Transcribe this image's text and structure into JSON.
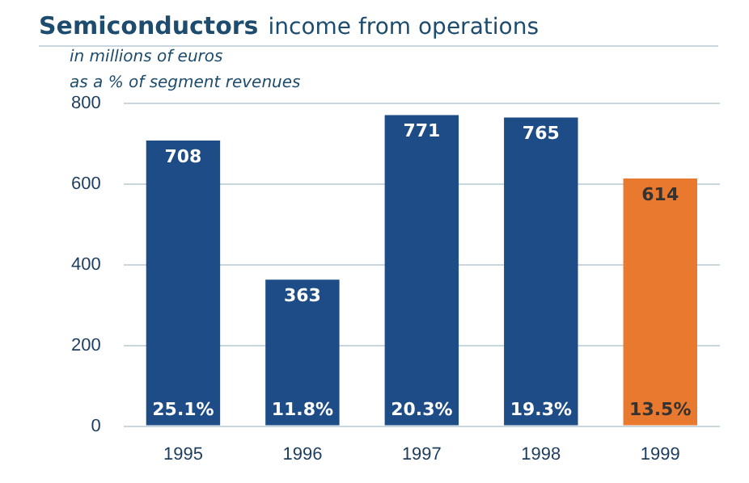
{
  "chart_data": {
    "type": "bar",
    "title": "Semiconductors",
    "subtitle": "income from operations",
    "annotations": [
      "in millions of euros",
      "as a % of segment revenues",
      {
        "text": "25.1%",
        "x": "1995",
        "y": 0
      },
      {
        "text": "11.8%",
        "x": "1996",
        "y": 0
      },
      {
        "text": "20.3%",
        "x": "1997",
        "y": 0
      },
      {
        "text": "19.3%",
        "x": "1998",
        "y": 0
      },
      {
        "text": "13.5%",
        "x": "1999",
        "y": 0
      }
    ],
    "categories": [
      "1995",
      "1996",
      "1997",
      "1998",
      "1999"
    ],
    "values": [
      708,
      363,
      771,
      765,
      614
    ],
    "colors": [
      "#1d4c87",
      "#1d4c87",
      "#1d4c87",
      "#1d4c87",
      "#e8792e"
    ],
    "ylim": [
      0,
      800
    ],
    "yticks": [
      0,
      200,
      400,
      600,
      800
    ],
    "grid": "y",
    "data_labels": true,
    "legend": false
  }
}
